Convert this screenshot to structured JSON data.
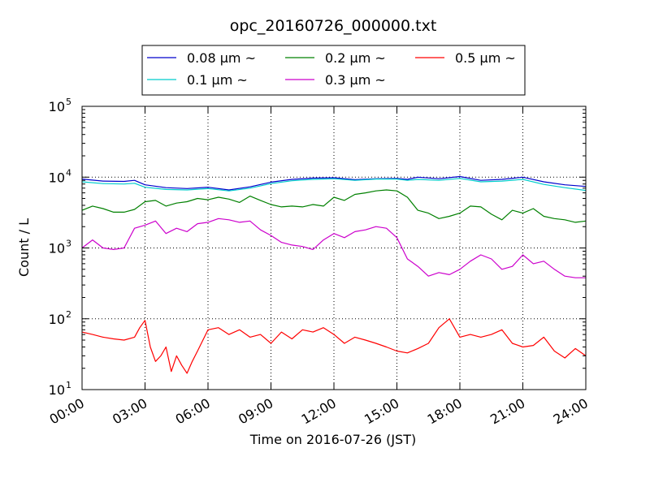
{
  "chart_data": {
    "type": "line",
    "title": "opc_20160726_000000.txt",
    "xlabel": "Time on 2016-07-26 (JST)",
    "ylabel": "Count / L",
    "x_ticks": [
      "00:00",
      "03:00",
      "06:00",
      "09:00",
      "12:00",
      "15:00",
      "18:00",
      "21:00",
      "24:00"
    ],
    "y_ticks": [
      {
        "base": "10",
        "exp": "1",
        "value": 10
      },
      {
        "base": "10",
        "exp": "2",
        "value": 100
      },
      {
        "base": "10",
        "exp": "3",
        "value": 1000
      },
      {
        "base": "10",
        "exp": "4",
        "value": 10000
      },
      {
        "base": "10",
        "exp": "5",
        "value": 100000
      }
    ],
    "xlim": [
      "00:00",
      "24:00"
    ],
    "ylim": [
      10,
      100000
    ],
    "yscale": "log",
    "grid": true,
    "legend_position": "top-center",
    "series": [
      {
        "name": "0.08 μm ~",
        "color": "#0000cc",
        "x": [
          "00:00",
          "01:00",
          "02:00",
          "02:30",
          "03:00",
          "04:00",
          "05:00",
          "06:00",
          "07:00",
          "08:00",
          "09:00",
          "10:00",
          "11:00",
          "12:00",
          "13:00",
          "14:00",
          "15:00",
          "15:30",
          "16:00",
          "17:00",
          "18:00",
          "19:00",
          "20:00",
          "21:00",
          "22:00",
          "23:00",
          "24:00"
        ],
        "values": [
          9400,
          8800,
          8700,
          9000,
          7800,
          7100,
          6900,
          7200,
          6600,
          7300,
          8500,
          9300,
          9700,
          9800,
          9200,
          9500,
          9600,
          9300,
          10000,
          9500,
          10200,
          9000,
          9300,
          10000,
          8600,
          7800,
          7400
        ]
      },
      {
        "name": "0.1 μm ~",
        "color": "#00cccc",
        "x": [
          "00:00",
          "01:00",
          "02:00",
          "02:30",
          "03:00",
          "04:00",
          "05:00",
          "06:00",
          "07:00",
          "08:00",
          "09:00",
          "10:00",
          "11:00",
          "12:00",
          "13:00",
          "14:00",
          "15:00",
          "15:30",
          "16:00",
          "17:00",
          "18:00",
          "19:00",
          "20:00",
          "21:00",
          "22:00",
          "23:00",
          "24:00"
        ],
        "values": [
          8600,
          8100,
          8000,
          8200,
          7200,
          6700,
          6600,
          6900,
          6400,
          7000,
          8100,
          8900,
          9300,
          9500,
          9000,
          9400,
          9400,
          9000,
          9300,
          9000,
          9600,
          8600,
          8800,
          9300,
          7900,
          7100,
          6500
        ]
      },
      {
        "name": "0.2 μm ~",
        "color": "#008000",
        "x": [
          "00:00",
          "00:30",
          "01:00",
          "01:30",
          "02:00",
          "02:30",
          "03:00",
          "03:30",
          "04:00",
          "04:30",
          "05:00",
          "05:30",
          "06:00",
          "06:30",
          "07:00",
          "07:30",
          "08:00",
          "08:30",
          "09:00",
          "09:30",
          "10:00",
          "10:30",
          "11:00",
          "11:30",
          "12:00",
          "12:30",
          "13:00",
          "13:30",
          "14:00",
          "14:30",
          "15:00",
          "15:30",
          "16:00",
          "16:30",
          "17:00",
          "17:30",
          "18:00",
          "18:30",
          "19:00",
          "19:30",
          "20:00",
          "20:30",
          "21:00",
          "21:30",
          "22:00",
          "22:30",
          "23:00",
          "23:30",
          "24:00"
        ],
        "values": [
          3400,
          3900,
          3600,
          3200,
          3200,
          3500,
          4500,
          4700,
          3900,
          4300,
          4500,
          5000,
          4800,
          5200,
          4900,
          4400,
          5400,
          4700,
          4100,
          3800,
          3900,
          3800,
          4100,
          3900,
          5200,
          4700,
          5700,
          6000,
          6400,
          6600,
          6400,
          5200,
          3400,
          3100,
          2600,
          2800,
          3100,
          3900,
          3800,
          3000,
          2500,
          3400,
          3100,
          3600,
          2800,
          2600,
          2500,
          2300,
          2400
        ]
      },
      {
        "name": "0.3 μm ~",
        "color": "#cc00cc",
        "x": [
          "00:00",
          "00:30",
          "01:00",
          "01:30",
          "02:00",
          "02:30",
          "03:00",
          "03:30",
          "04:00",
          "04:30",
          "05:00",
          "05:30",
          "06:00",
          "06:30",
          "07:00",
          "07:30",
          "08:00",
          "08:30",
          "09:00",
          "09:30",
          "10:00",
          "10:30",
          "11:00",
          "11:30",
          "12:00",
          "12:30",
          "13:00",
          "13:30",
          "14:00",
          "14:30",
          "15:00",
          "15:30",
          "16:00",
          "16:30",
          "17:00",
          "17:30",
          "18:00",
          "18:30",
          "19:00",
          "19:30",
          "20:00",
          "20:30",
          "21:00",
          "21:30",
          "22:00",
          "22:30",
          "23:00",
          "23:30",
          "24:00"
        ],
        "values": [
          1000,
          1300,
          1000,
          950,
          1000,
          1900,
          2100,
          2400,
          1600,
          1900,
          1700,
          2200,
          2300,
          2600,
          2500,
          2300,
          2400,
          1800,
          1500,
          1200,
          1100,
          1050,
          950,
          1300,
          1600,
          1400,
          1700,
          1800,
          2000,
          1900,
          1400,
          700,
          550,
          400,
          450,
          420,
          500,
          650,
          800,
          700,
          500,
          550,
          800,
          600,
          650,
          500,
          400,
          380,
          380
        ]
      },
      {
        "name": "0.5 μm ~",
        "color": "#ff0000",
        "x": [
          "00:00",
          "00:30",
          "01:00",
          "01:30",
          "02:00",
          "02:30",
          "02:45",
          "03:00",
          "03:15",
          "03:30",
          "03:45",
          "04:00",
          "04:15",
          "04:30",
          "04:45",
          "05:00",
          "05:15",
          "05:30",
          "06:00",
          "06:30",
          "07:00",
          "07:30",
          "08:00",
          "08:30",
          "09:00",
          "09:30",
          "10:00",
          "10:30",
          "11:00",
          "11:30",
          "12:00",
          "12:30",
          "13:00",
          "13:30",
          "14:00",
          "14:30",
          "15:00",
          "15:30",
          "16:00",
          "16:30",
          "17:00",
          "17:30",
          "18:00",
          "18:30",
          "19:00",
          "19:30",
          "20:00",
          "20:30",
          "21:00",
          "21:30",
          "22:00",
          "22:30",
          "23:00",
          "23:30",
          "24:00"
        ],
        "values": [
          65,
          60,
          55,
          52,
          50,
          55,
          75,
          95,
          40,
          25,
          30,
          40,
          18,
          30,
          22,
          17,
          25,
          35,
          70,
          75,
          60,
          70,
          55,
          60,
          45,
          65,
          52,
          70,
          65,
          75,
          60,
          45,
          55,
          50,
          45,
          40,
          35,
          33,
          38,
          45,
          75,
          100,
          55,
          60,
          55,
          60,
          70,
          45,
          40,
          42,
          55,
          35,
          28,
          38,
          30
        ]
      }
    ]
  }
}
